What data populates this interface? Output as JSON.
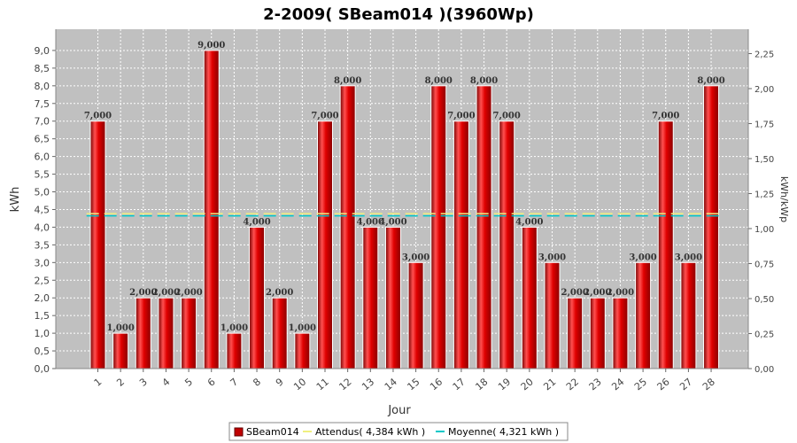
{
  "chart_data": {
    "type": "bar",
    "title": "2-2009( SBeam014 )(3960Wp)",
    "xlabel": "Jour",
    "ylabel": "kWh",
    "ylabel_right": "kWh/kWp",
    "ylim": [
      0,
      9.6
    ],
    "ylim_right": [
      0,
      2.424
    ],
    "y_ticks": [
      "0,0",
      "0,5",
      "1,0",
      "1,5",
      "2,0",
      "2,5",
      "3,0",
      "3,5",
      "4,0",
      "4,5",
      "5,0",
      "5,5",
      "6,0",
      "6,5",
      "7,0",
      "7,5",
      "8,0",
      "8,5",
      "9,0"
    ],
    "y_ticks_right": [
      "0,00",
      "0,25",
      "0,50",
      "0,75",
      "1,00",
      "1,25",
      "1,50",
      "1,75",
      "2,00",
      "2,25"
    ],
    "categories": [
      "1",
      "2",
      "3",
      "4",
      "5",
      "6",
      "7",
      "8",
      "9",
      "10",
      "11",
      "12",
      "13",
      "14",
      "15",
      "16",
      "17",
      "18",
      "19",
      "20",
      "21",
      "22",
      "23",
      "24",
      "25",
      "26",
      "27",
      "28"
    ],
    "series": [
      {
        "name": "SBeam014",
        "values": [
          7,
          1,
          2,
          2,
          2,
          9,
          1,
          4,
          2,
          1,
          7,
          8,
          4,
          4,
          3,
          8,
          7,
          8,
          7,
          4,
          3,
          2,
          2,
          2,
          3,
          7,
          3,
          8
        ],
        "labels": [
          "7,000",
          "1,000",
          "2,000",
          "2,000",
          "2,000",
          "9,000",
          "1,000",
          "4,000",
          "2,000",
          "1,000",
          "7,000",
          "8,000",
          "4,000",
          "4,000",
          "3,000",
          "8,000",
          "7,000",
          "8,000",
          "7,000",
          "4,000",
          "3,000",
          "2,000",
          "2,000",
          "2,000",
          "3,000",
          "7,000",
          "3,000",
          "8,000"
        ]
      }
    ],
    "reference_lines": [
      {
        "name": "Attendus( 4,384 kWh )",
        "value": 4.384
      },
      {
        "name": "Moyenne( 4,321 kWh )",
        "value": 4.321
      }
    ],
    "grid": true,
    "legend_position": "bottom"
  },
  "colors": {
    "bar": "#e00000",
    "bar_dark": "#8a0000",
    "bar_light": "#ff6a6a",
    "plot_bg": "#c0c0c0",
    "expected_line": "#f0f080",
    "average_line": "#00c8c8"
  }
}
